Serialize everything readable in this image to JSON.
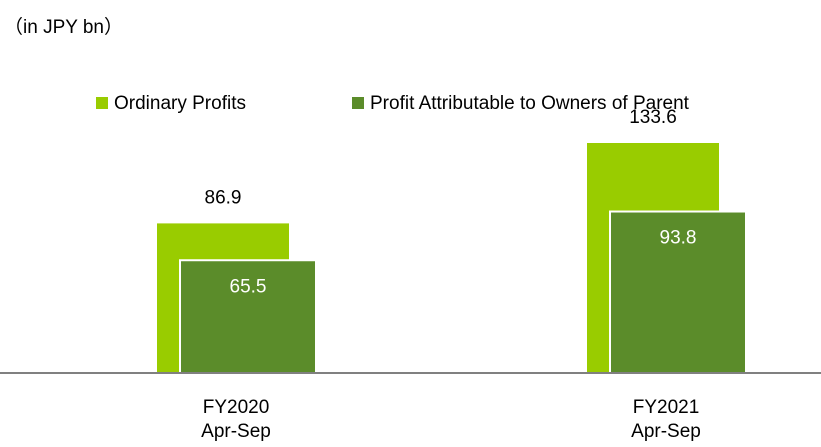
{
  "chart_data": {
    "type": "bar",
    "unit_label": "（in JPY bn）",
    "categories": [
      [
        "FY2020",
        "Apr-Sep"
      ],
      [
        "FY2021",
        "Apr-Sep"
      ]
    ],
    "series": [
      {
        "name": "Ordinary Profits",
        "color": "#99cc00",
        "values": [
          86.9,
          133.6
        ]
      },
      {
        "name": "Profit Attributable to Owners of Parent",
        "color": "#5b8c2a",
        "values": [
          65.5,
          93.8
        ]
      }
    ]
  }
}
